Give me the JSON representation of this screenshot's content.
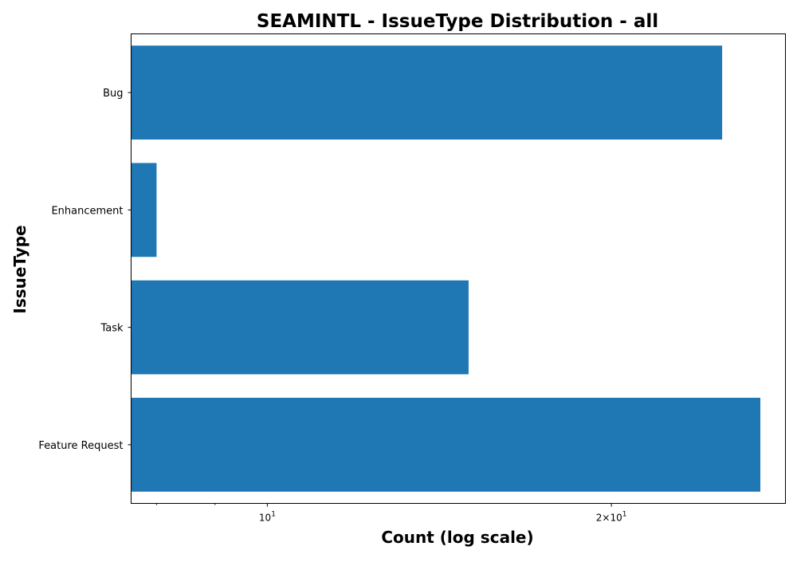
{
  "chart_data": {
    "type": "bar",
    "orientation": "horizontal",
    "title": "SEAMINTL - IssueType Distribution - all",
    "xlabel": "Count (log scale)",
    "ylabel": "IssueType",
    "x_scale": "log",
    "xlim": [
      7.6,
      28.4
    ],
    "grid": false,
    "categories": [
      "Bug",
      "Enhancement",
      "Task",
      "Feature Request"
    ],
    "values": [
      25,
      8,
      15,
      27
    ],
    "x_ticks": [
      {
        "value": 10,
        "label": "10",
        "superscript": "1"
      },
      {
        "value": 20,
        "label": "2×10",
        "superscript": "1"
      }
    ],
    "x_minor_ticks": [
      8,
      9
    ]
  },
  "colors": {
    "bar": "#1f77b4",
    "axes": "#000000",
    "background": "#ffffff"
  }
}
